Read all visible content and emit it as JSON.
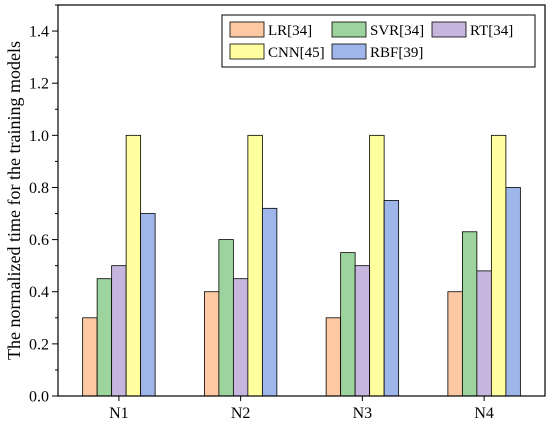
{
  "chart_data": {
    "type": "bar",
    "title": "",
    "xlabel": "",
    "ylabel": "The normalized time for the training models",
    "categories": [
      "N1",
      "N2",
      "N3",
      "N4"
    ],
    "ylim": [
      0,
      1.5
    ],
    "yticks": [
      0.0,
      0.2,
      0.4,
      0.6,
      0.8,
      1.0,
      1.2,
      1.4
    ],
    "ytick_labels": [
      "0.0",
      "0.2",
      "0.4",
      "0.6",
      "0.8",
      "1.0",
      "1.2",
      "1.4"
    ],
    "grid": false,
    "legend_position": "top-right",
    "series": [
      {
        "name": "LR[34]",
        "color": "#fcc9a3",
        "values": [
          0.3,
          0.4,
          0.3,
          0.4
        ]
      },
      {
        "name": "SVR[34]",
        "color": "#9dd49d",
        "values": [
          0.45,
          0.6,
          0.55,
          0.63
        ]
      },
      {
        "name": "RT[34]",
        "color": "#c6b6de",
        "values": [
          0.5,
          0.45,
          0.5,
          0.48
        ]
      },
      {
        "name": "CNN[45]",
        "color": "#ffffa0",
        "values": [
          1.0,
          1.0,
          1.0,
          1.0
        ]
      },
      {
        "name": "RBF[39]",
        "color": "#9fb6ea",
        "values": [
          0.7,
          0.72,
          0.75,
          0.8
        ]
      }
    ]
  }
}
